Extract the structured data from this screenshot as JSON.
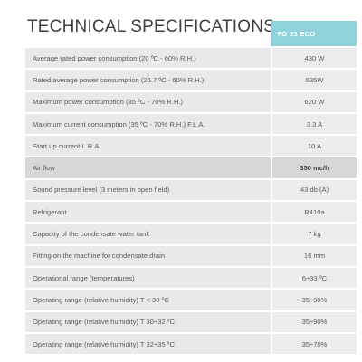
{
  "title": "TECHNICAL SPECIFICATIONS",
  "model_header": "FD 33 ECO",
  "rows": [
    {
      "label": "Average rated power consumption (20 ºC - 60% R.H.)",
      "value": "430 W"
    },
    {
      "label": "Rated average power consumption (26.7 ºC - 60% R.H.)",
      "value": "535W"
    },
    {
      "label": "Maximum power consumption (35 ºC - 70% R.H.)",
      "value": "620 W"
    },
    {
      "label": "Maximum current consumption (35 ºC - 70% R.H.) F.L.A.",
      "value": "3.3 A"
    },
    {
      "label": "Start up current L.R.A.",
      "value": "10 A"
    },
    {
      "label": "Air flow",
      "value": "350 mc/h"
    },
    {
      "label": "Sound pressure level (3 meters in open field)",
      "value": "43 db (A)"
    },
    {
      "label": "Refrigerant",
      "value": "R410a"
    },
    {
      "label": "Capacity of the condensate water tank",
      "value": "7 kg"
    },
    {
      "label": "Fitting on the machine for condensate drain",
      "value": "16 mm"
    },
    {
      "label": "Operational range (temperatures)",
      "value": "6÷33 ºC"
    },
    {
      "label": "Operating range (relative humidity) T < 30 ºC",
      "value": "35÷98%"
    },
    {
      "label": "Operating range (relative humidity)  T 30÷32 ºC",
      "value": "35÷90%"
    },
    {
      "label": "Operating range (relative humidity)  T 32÷35 ºC",
      "value": "35÷70%"
    }
  ]
}
